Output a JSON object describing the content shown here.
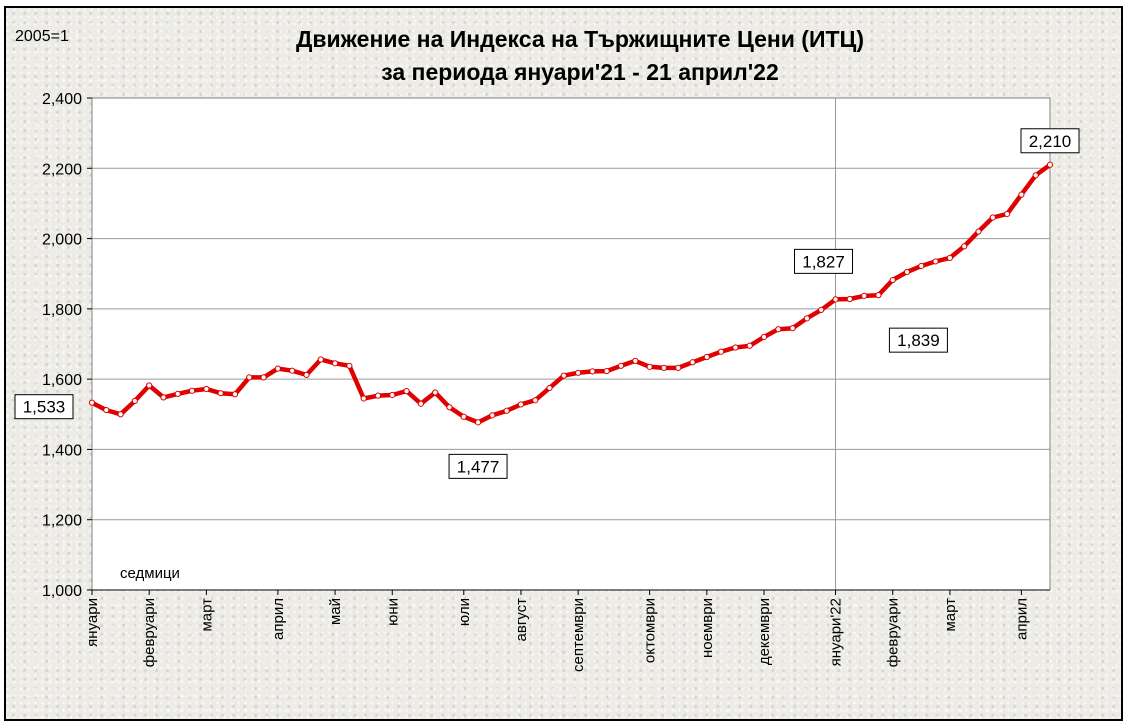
{
  "chart_data": {
    "type": "line",
    "title": "Движение на Индекса на Тържищните Цени (ИТЦ)",
    "subtitle": "за периода януари'21 - 21 април'22",
    "base_label": "2005=1",
    "xlabel": "седмици",
    "ylim": [
      1.0,
      2.4
    ],
    "yticks": [
      "1,000",
      "1,200",
      "1,400",
      "1,600",
      "1,800",
      "2,000",
      "2,200",
      "2,400"
    ],
    "grid": true,
    "colors": {
      "line": "#e00000",
      "marker": "#ffffff"
    },
    "month_labels": [
      {
        "label": "януари",
        "week": 0
      },
      {
        "label": "февруари",
        "week": 4
      },
      {
        "label": "март",
        "week": 8
      },
      {
        "label": "април",
        "week": 13
      },
      {
        "label": "май",
        "week": 17
      },
      {
        "label": "юни",
        "week": 21
      },
      {
        "label": "юли",
        "week": 26
      },
      {
        "label": "август",
        "week": 30
      },
      {
        "label": "септември",
        "week": 34
      },
      {
        "label": "октомври",
        "week": 39
      },
      {
        "label": "ноември",
        "week": 43
      },
      {
        "label": "декември",
        "week": 47
      },
      {
        "label": "януари'22",
        "week": 52
      },
      {
        "label": "февруари",
        "week": 56
      },
      {
        "label": "март",
        "week": 60
      },
      {
        "label": "април",
        "week": 65
      }
    ],
    "year_divider_week": 52,
    "series": [
      {
        "values": [
          1.533,
          1.512,
          1.5,
          1.538,
          1.582,
          1.548,
          1.558,
          1.567,
          1.572,
          1.56,
          1.557,
          1.605,
          1.605,
          1.63,
          1.624,
          1.612,
          1.656,
          1.645,
          1.638,
          1.545,
          1.553,
          1.555,
          1.566,
          1.53,
          1.562,
          1.52,
          1.493,
          1.477,
          1.497,
          1.51,
          1.528,
          1.54,
          1.575,
          1.61,
          1.618,
          1.622,
          1.623,
          1.638,
          1.652,
          1.635,
          1.632,
          1.632,
          1.648,
          1.663,
          1.678,
          1.69,
          1.695,
          1.72,
          1.742,
          1.745,
          1.773,
          1.797,
          1.827,
          1.828,
          1.837,
          1.839,
          1.882,
          1.905,
          1.922,
          1.935,
          1.945,
          1.978,
          2.02,
          2.06,
          2.07,
          2.125,
          2.18,
          2.21
        ]
      }
    ],
    "annotations": [
      {
        "text": "1,533",
        "week": 0
      },
      {
        "text": "1,477",
        "week": 27
      },
      {
        "text": "1,827",
        "week": 52
      },
      {
        "text": "1,839",
        "week": 55
      },
      {
        "text": "2,210",
        "week": 67
      }
    ]
  }
}
